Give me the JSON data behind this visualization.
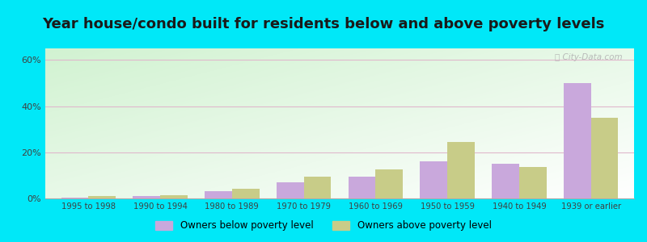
{
  "title": "Year house/condo built for residents below and above poverty levels",
  "categories": [
    "1995 to 1998",
    "1990 to 1994",
    "1980 to 1989",
    "1970 to 1979",
    "1960 to 1969",
    "1950 to 1959",
    "1940 to 1949",
    "1939 or earlier"
  ],
  "below_poverty": [
    0.5,
    1.2,
    3.0,
    7.0,
    9.5,
    16.0,
    15.0,
    50.0
  ],
  "above_poverty": [
    1.2,
    1.5,
    4.2,
    9.5,
    12.5,
    24.5,
    13.5,
    35.0
  ],
  "below_color": "#c9a8dc",
  "above_color": "#c8cc88",
  "ylim": [
    0,
    65
  ],
  "yticks": [
    0,
    20,
    40,
    60
  ],
  "ytick_labels": [
    "0%",
    "20%",
    "40%",
    "60%"
  ],
  "outer_bg": "#00e8f8",
  "legend_below": "Owners below poverty level",
  "legend_above": "Owners above poverty level",
  "title_fontsize": 13,
  "bar_width": 0.38,
  "watermark": "City-Data.com",
  "grid_color": "#e0b8cc",
  "tick_label_color": "#404040",
  "title_color": "#1a1a1a"
}
